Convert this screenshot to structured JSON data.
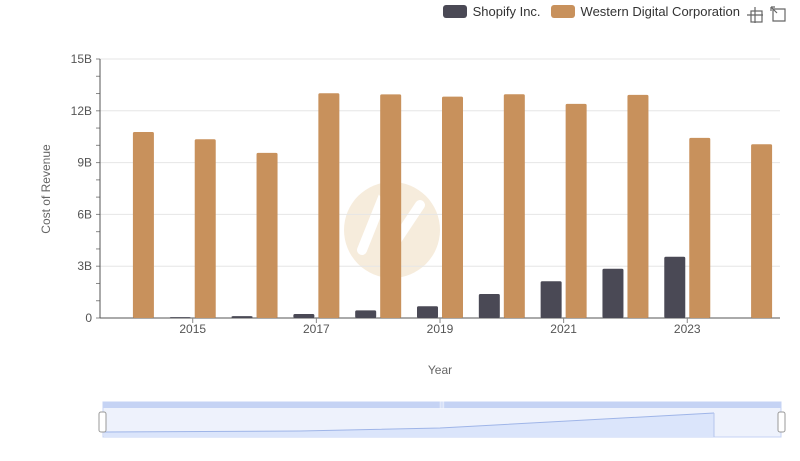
{
  "colors": {
    "shopify": "#4a4955",
    "wdc": "#c8915c",
    "grid": "#e6e6e6",
    "axis": "#555555",
    "zoom_fill": "#dbe5fb",
    "zoom_border": "#c5d3f4",
    "watermark": "#f6ead9"
  },
  "legend": {
    "items": [
      {
        "label": "Shopify Inc."
      },
      {
        "label": "Western Digital Corporation"
      }
    ]
  },
  "toolbar": {
    "zoom_icon": "zoom-icon",
    "reset_icon": "reset-icon"
  },
  "chart_data": {
    "type": "bar",
    "xlabel": "Year",
    "ylabel": "Cost of Revenue",
    "ylim": [
      0,
      15000000000
    ],
    "yticks": [
      "0",
      "3B",
      "6B",
      "9B",
      "12B",
      "15B"
    ],
    "xticks": [
      "2015",
      "2017",
      "2019",
      "2021",
      "2023"
    ],
    "categories": [
      "2014",
      "2015",
      "2016",
      "2017",
      "2018",
      "2019",
      "2020",
      "2021",
      "2022",
      "2023",
      "2024"
    ],
    "series": [
      {
        "name": "Shopify Inc.",
        "values": [
          null,
          50000000,
          110000000,
          230000000,
          440000000,
          680000000,
          1390000000,
          2130000000,
          2850000000,
          3550000000,
          null
        ]
      },
      {
        "name": "Western Digital Corporation",
        "values": [
          10770000000,
          10350000000,
          9560000000,
          13020000000,
          12950000000,
          12820000000,
          12960000000,
          12400000000,
          12920000000,
          10430000000,
          10060000000
        ]
      }
    ],
    "grid": true,
    "legend_position": "top-right"
  }
}
